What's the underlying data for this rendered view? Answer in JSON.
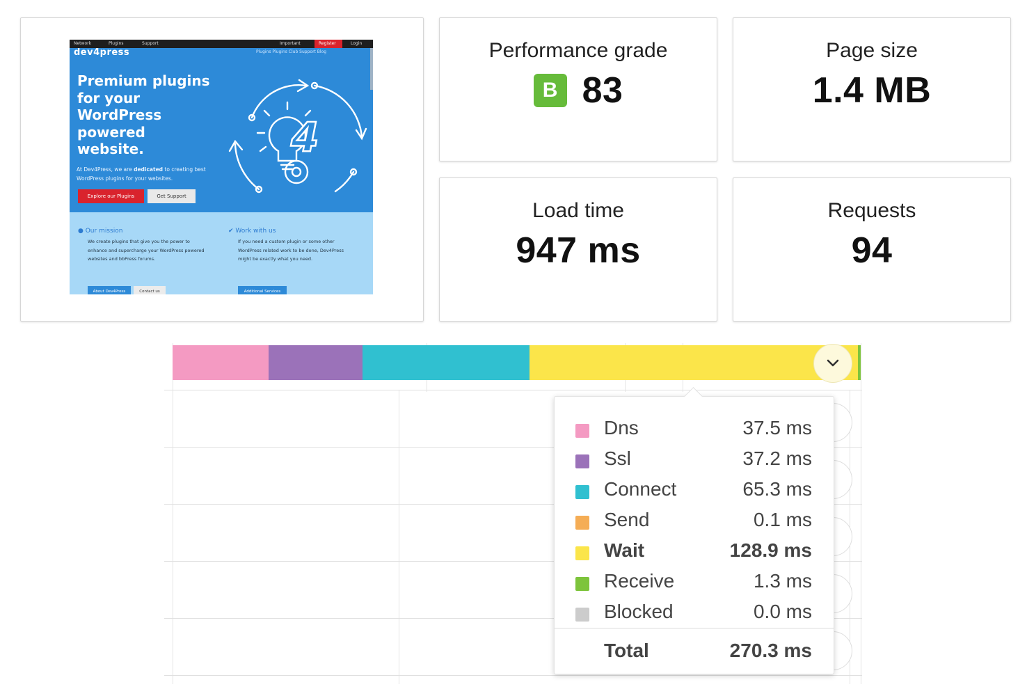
{
  "preview": {
    "topbar": {
      "network": "Network",
      "plugins": "Plugins",
      "support": "Support",
      "important": "Important",
      "register": "Register",
      "login": "Login"
    },
    "logo": "dev4press",
    "nav_links": "Plugins   Plugins Club   Support   Blog",
    "hero_title": "Premium plugins for your WordPress powered website.",
    "hero_text_before": "At Dev4Press, we are ",
    "hero_text_bold": "dedicated",
    "hero_text_after": " to creating best WordPress plugins for your websites.",
    "btn_explore": "Explore our Plugins",
    "btn_support": "Get Support",
    "mission_title": "Our mission",
    "mission_text": "We create plugins that give you the power to enhance and supercharge your WordPress powered websites and bbPress forums.",
    "mission_btn1": "About Dev4Press",
    "mission_btn2": "Contact us",
    "work_title": "Work with us",
    "work_text": "If you need a custom plugin or some other WordPress related work to be done, Dev4Press might be exactly what you need.",
    "work_btn": "Additional Services"
  },
  "metrics": {
    "performance": {
      "label": "Performance grade",
      "grade": "B",
      "score": "83"
    },
    "page_size": {
      "label": "Page size",
      "value": "1.4 MB"
    },
    "load_time": {
      "label": "Load time",
      "value": "947 ms"
    },
    "requests": {
      "label": "Requests",
      "value": "94"
    }
  },
  "timing": {
    "rows": [
      {
        "name": "Dns",
        "value": "37.5 ms",
        "color": "#f49ac2",
        "bold": false
      },
      {
        "name": "Ssl",
        "value": "37.2 ms",
        "color": "#9b72b9",
        "bold": false
      },
      {
        "name": "Connect",
        "value": "65.3 ms",
        "color": "#30c0d0",
        "bold": false
      },
      {
        "name": "Send",
        "value": "0.1 ms",
        "color": "#f5ad55",
        "bold": false
      },
      {
        "name": "Wait",
        "value": "128.9 ms",
        "color": "#fbe54a",
        "bold": true
      },
      {
        "name": "Receive",
        "value": "1.3 ms",
        "color": "#7dc43c",
        "bold": false
      },
      {
        "name": "Blocked",
        "value": "0.0 ms",
        "color": "#cccccc",
        "bold": false
      }
    ],
    "total_label": "Total",
    "total_value": "270.3 ms"
  },
  "icons": {
    "expand": "chevron-down-icon"
  }
}
